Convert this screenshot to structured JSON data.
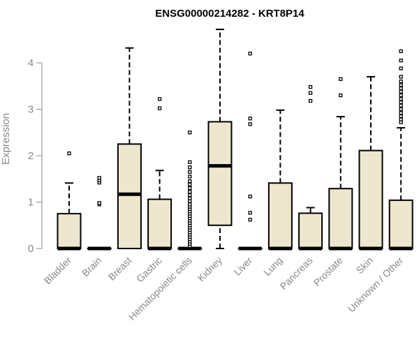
{
  "chart_data": {
    "type": "boxplot",
    "title": "ENSG00000214282 - KRT8P14",
    "xlabel": "",
    "ylabel": "Expression",
    "ylim": [
      0,
      4.85
    ],
    "yticks": [
      0,
      1,
      2,
      3,
      4
    ],
    "grid": false,
    "box_fill": "#ede7cf",
    "categories": [
      "Bladder",
      "Brain",
      "Breast",
      "Gastric",
      "Hematopoietic cells",
      "Kidney",
      "Liver",
      "Lung",
      "Pancreas",
      "Prostate",
      "Skin",
      "Unknown / Other"
    ],
    "boxes": [
      {
        "q1": 0,
        "median": 0,
        "q3": 0.75,
        "whisker_low": 0,
        "whisker_high": 1.41,
        "outliers": [
          2.05
        ]
      },
      {
        "q1": 0,
        "median": 0,
        "q3": 0,
        "whisker_low": 0,
        "whisker_high": 0,
        "outliers": [
          0.95,
          0.98,
          1.42,
          1.47,
          1.52
        ]
      },
      {
        "q1": 0,
        "median": 1.17,
        "q3": 2.25,
        "whisker_low": 0,
        "whisker_high": 4.32,
        "outliers": []
      },
      {
        "q1": 0,
        "median": 0,
        "q3": 1.06,
        "whisker_low": 0,
        "whisker_high": 1.68,
        "outliers": [
          3.02,
          3.22
        ]
      },
      {
        "q1": 0,
        "median": 0,
        "q3": 0,
        "whisker_low": 0,
        "whisker_high": 0,
        "outliers": [
          0.05,
          0.1,
          0.15,
          0.2,
          0.25,
          0.3,
          0.35,
          0.4,
          0.45,
          0.5,
          0.55,
          0.6,
          0.65,
          0.7,
          0.75,
          0.8,
          0.85,
          0.9,
          0.95,
          1.02,
          1.08,
          1.15,
          1.22,
          1.3,
          1.38,
          1.45,
          1.55,
          1.65,
          1.75,
          1.86,
          2.5
        ]
      },
      {
        "q1": 0.5,
        "median": 1.78,
        "q3": 2.73,
        "whisker_low": 0,
        "whisker_high": 4.72,
        "outliers": []
      },
      {
        "q1": 0,
        "median": 0,
        "q3": 0,
        "whisker_low": 0,
        "whisker_high": 0,
        "outliers": [
          0.62,
          0.77,
          1.12,
          2.68,
          2.8,
          4.2
        ]
      },
      {
        "q1": 0,
        "median": 0,
        "q3": 1.41,
        "whisker_low": 0,
        "whisker_high": 2.98,
        "outliers": []
      },
      {
        "q1": 0,
        "median": 0,
        "q3": 0.76,
        "whisker_low": 0,
        "whisker_high": 0.88,
        "outliers": [
          3.18,
          3.35,
          3.48
        ]
      },
      {
        "q1": 0,
        "median": 0,
        "q3": 1.29,
        "whisker_low": 0,
        "whisker_high": 2.84,
        "outliers": [
          3.3,
          3.65
        ]
      },
      {
        "q1": 0,
        "median": 0,
        "q3": 2.11,
        "whisker_low": 0,
        "whisker_high": 3.7,
        "outliers": []
      },
      {
        "q1": 0,
        "median": 0,
        "q3": 1.04,
        "whisker_low": 0,
        "whisker_high": 2.6,
        "outliers": [
          2.72,
          2.78,
          2.85,
          2.92,
          3.0,
          3.08,
          3.15,
          3.22,
          3.3,
          3.38,
          3.45,
          3.52,
          3.6,
          3.7,
          3.88,
          4.05,
          4.25
        ]
      }
    ]
  }
}
